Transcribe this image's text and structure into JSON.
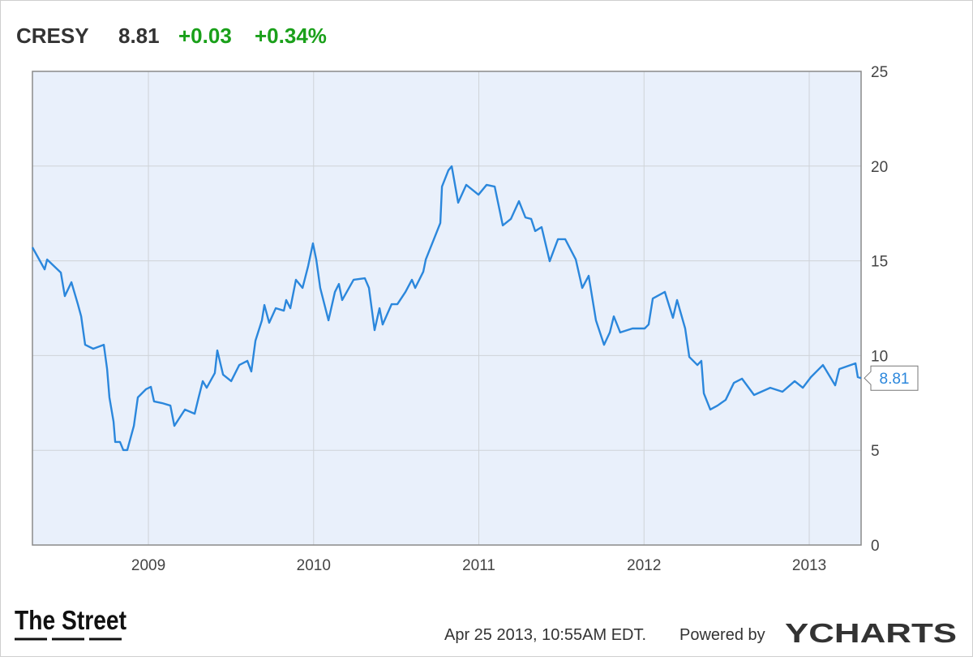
{
  "chart_data": {
    "type": "line",
    "ticker": "CRESY",
    "price": "8.81",
    "change": "+0.03",
    "change_percent": "+0.34%",
    "x": [
      2008.298,
      2008.372,
      2008.387,
      2008.47,
      2008.494,
      2008.534,
      2008.573,
      2008.593,
      2008.617,
      2008.666,
      2008.73,
      2008.75,
      2008.764,
      2008.789,
      2008.799,
      2008.828,
      2008.848,
      2008.872,
      2008.912,
      2008.936,
      2008.985,
      2009.015,
      2009.034,
      2009.083,
      2009.133,
      2009.157,
      2009.221,
      2009.28,
      2009.304,
      2009.329,
      2009.353,
      2009.402,
      2009.417,
      2009.452,
      2009.501,
      2009.55,
      2009.599,
      2009.623,
      2009.648,
      2009.687,
      2009.702,
      2009.731,
      2009.771,
      2009.82,
      2009.834,
      2009.859,
      2009.893,
      2009.933,
      2009.967,
      2009.996,
      2010.016,
      2010.04,
      2010.09,
      2010.129,
      2010.153,
      2010.173,
      2010.242,
      2010.31,
      2010.335,
      2010.369,
      2010.399,
      2010.418,
      2010.472,
      2010.507,
      2010.556,
      2010.595,
      2010.615,
      2010.664,
      2010.679,
      2010.728,
      2010.767,
      2010.777,
      2010.816,
      2010.836,
      2010.875,
      2010.924,
      2010.998,
      2011.047,
      2011.096,
      2011.145,
      2011.194,
      2011.243,
      2011.282,
      2011.317,
      2011.341,
      2011.38,
      2011.429,
      2011.479,
      2011.523,
      2011.587,
      2011.626,
      2011.665,
      2011.709,
      2011.758,
      2011.793,
      2011.817,
      2011.856,
      2011.93,
      2012.004,
      2012.028,
      2012.053,
      2012.126,
      2012.175,
      2012.2,
      2012.249,
      2012.274,
      2012.323,
      2012.347,
      2012.362,
      2012.401,
      2012.445,
      2012.494,
      2012.544,
      2012.593,
      2012.666,
      2012.764,
      2012.838,
      2012.912,
      2012.961,
      2013.01,
      2013.083,
      2013.157,
      2013.182,
      2013.28,
      2013.294,
      2013.314
    ],
    "series": [
      {
        "name": "CRESY",
        "color": "#2b87dc",
        "values": [
          15.71,
          14.55,
          15.07,
          14.38,
          13.14,
          13.87,
          12.71,
          12.07,
          10.57,
          10.36,
          10.57,
          9.29,
          7.79,
          6.51,
          5.44,
          5.44,
          5.01,
          5.01,
          6.29,
          7.79,
          8.22,
          8.35,
          7.58,
          7.49,
          7.36,
          6.29,
          7.15,
          6.93,
          7.79,
          8.65,
          8.3,
          9.08,
          10.27,
          8.99,
          8.65,
          9.5,
          9.72,
          9.16,
          10.79,
          11.86,
          12.67,
          11.73,
          12.5,
          12.37,
          12.93,
          12.5,
          14.0,
          13.57,
          14.73,
          15.92,
          15.07,
          13.57,
          11.86,
          13.36,
          13.78,
          12.93,
          14.0,
          14.08,
          13.57,
          11.34,
          12.5,
          11.64,
          12.71,
          12.71,
          13.36,
          14.0,
          13.57,
          14.43,
          15.07,
          16.14,
          17.0,
          18.92,
          19.78,
          19.99,
          18.07,
          19.01,
          18.49,
          19.01,
          18.92,
          16.87,
          17.21,
          18.15,
          17.29,
          17.21,
          16.57,
          16.78,
          14.98,
          16.14,
          16.14,
          15.07,
          13.57,
          14.21,
          11.86,
          10.57,
          11.22,
          12.07,
          11.22,
          11.43,
          11.43,
          11.64,
          13.01,
          13.36,
          11.99,
          12.93,
          11.43,
          9.93,
          9.5,
          9.72,
          8.01,
          7.15,
          7.36,
          7.66,
          8.56,
          8.78,
          7.92,
          8.3,
          8.09,
          8.65,
          8.3,
          8.86,
          9.5,
          8.43,
          9.29,
          9.59,
          8.86,
          8.81
        ]
      }
    ],
    "xlim": [
      2008.298,
      2013.314
    ],
    "xticks": [
      2009,
      2010,
      2011,
      2012,
      2013
    ],
    "ylim": [
      0,
      25
    ],
    "yticks": [
      0,
      5,
      10,
      15,
      20,
      25
    ],
    "grid": true,
    "plot_background": "#e9f0fb"
  },
  "footer": {
    "logo": "The Street",
    "timestamp": "Apr 25 2013, 10:55AM EDT.",
    "powered_by": "Powered by",
    "brand": "YCHARTS"
  }
}
